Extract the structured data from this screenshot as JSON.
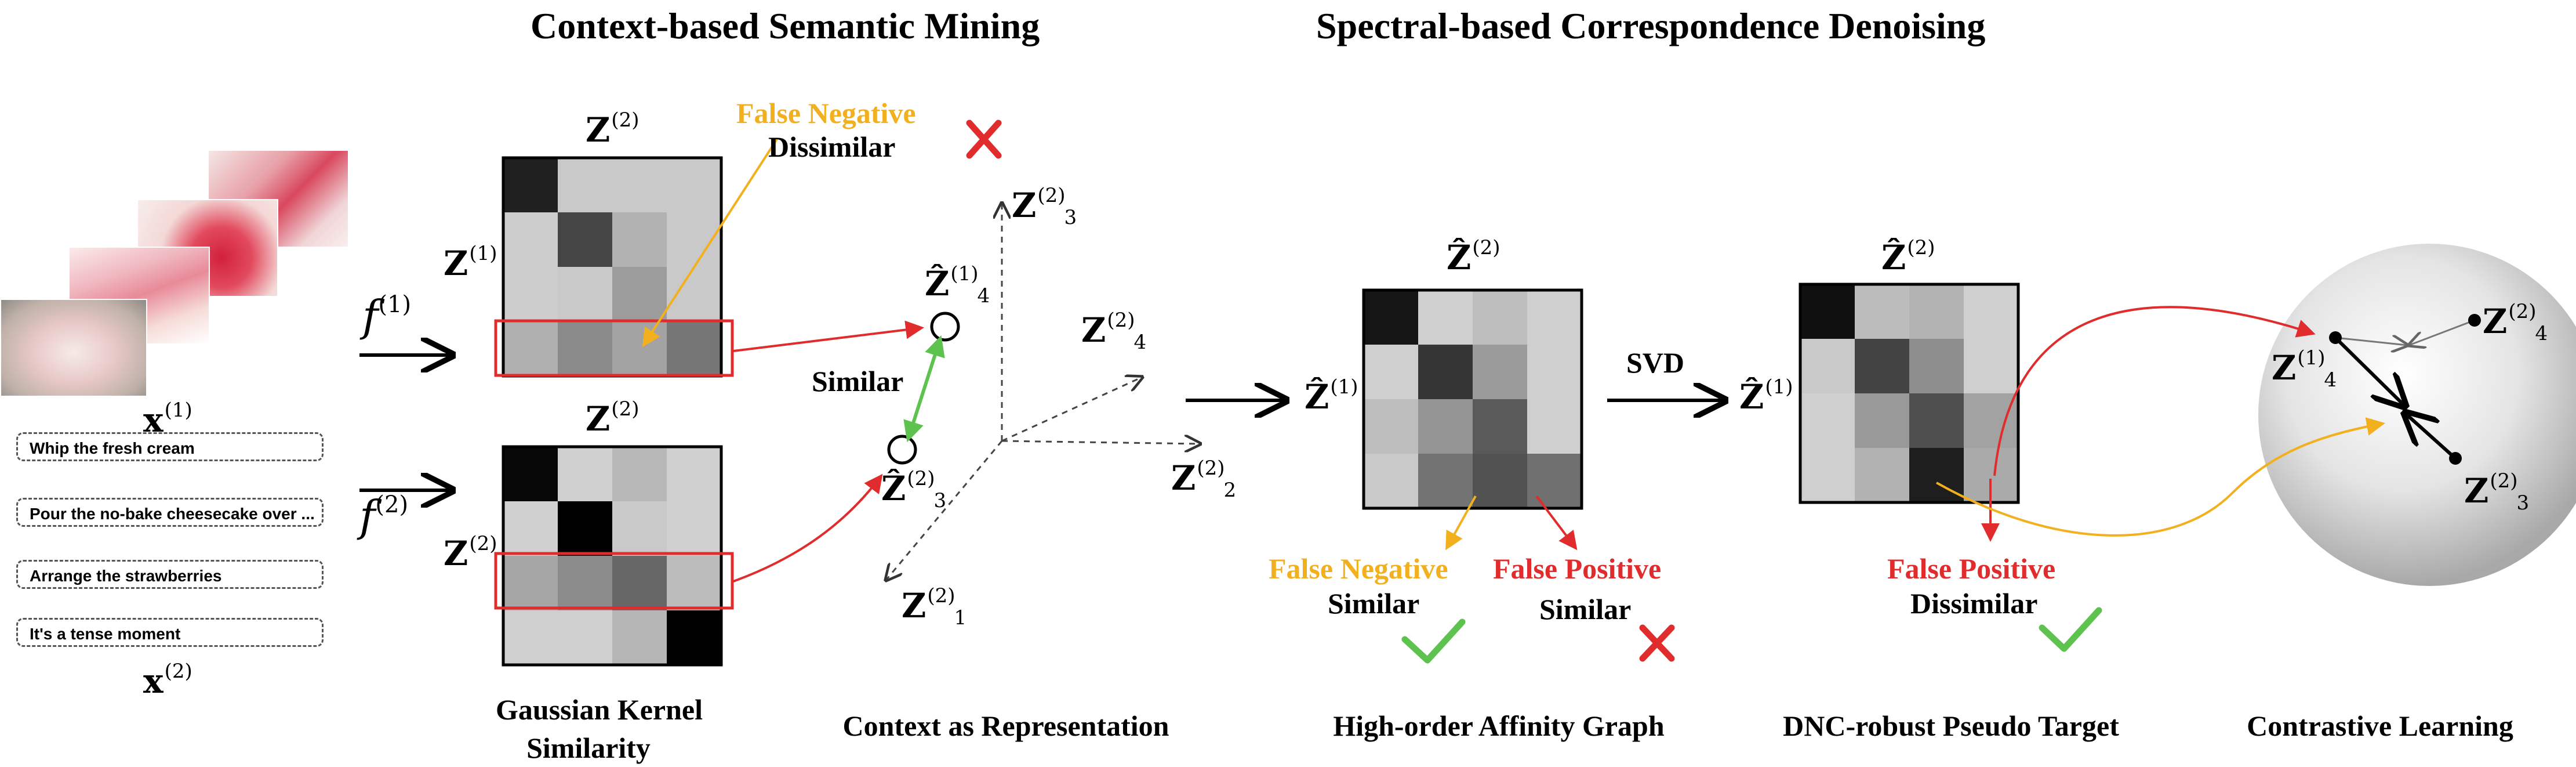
{
  "sections": {
    "mining": "Context-based Semantic Mining",
    "denoising": "Spectral-based Correspondence Denoising"
  },
  "inputs": {
    "video_label": "x",
    "video_sup": "(1)",
    "text_label": "x",
    "text_sup": "(2)",
    "captions": [
      "Whip the fresh cream",
      "Pour the no-bake cheesecake over ...",
      "Arrange the strawberries",
      "It's a tense moment"
    ]
  },
  "encoders": {
    "f": "f",
    "sup1": "(1)",
    "sup2": "(2)"
  },
  "math": {
    "Z": "Z",
    "Zhat": "Ẑ",
    "s1": "(1)",
    "s2": "(2)",
    "i1": "1",
    "i2": "2",
    "i3": "3",
    "i4": "4"
  },
  "annotations": {
    "false_negative": "False Negative",
    "false_positive": "False Positive",
    "similar": "Similar",
    "dissimilar": "Dissimilar",
    "svd": "SVD"
  },
  "captions": {
    "gaussian_line1": "Gaussian Kernel",
    "gaussian_line2": "Similarity",
    "context": "Context as Representation",
    "affinity": "High-order Affinity Graph",
    "pseudo": "DNC-robust Pseudo Target",
    "contrastive": "Contrastive Learning"
  },
  "colors": {
    "red": "#e02c2c",
    "yellow": "#f2b01e",
    "green": "#5ec24e",
    "cross": "#e02c2c"
  }
}
